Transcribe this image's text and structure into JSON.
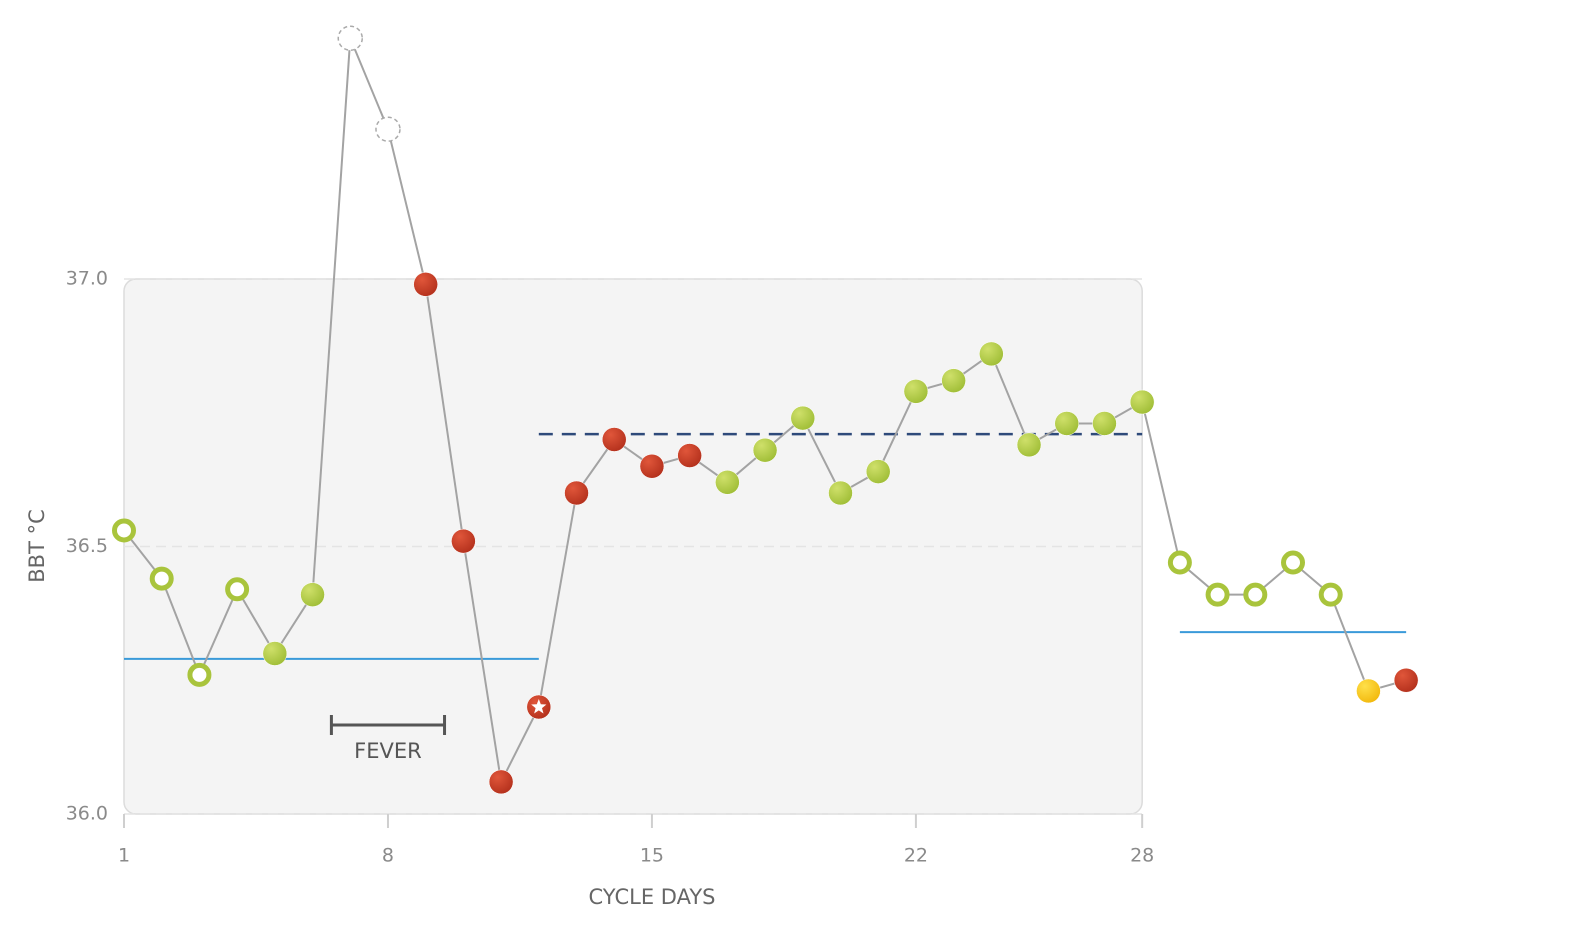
{
  "chart_data": {
    "type": "line",
    "x": [
      1,
      2,
      3,
      4,
      5,
      6,
      7,
      8,
      9,
      10,
      11,
      12,
      13,
      14,
      15,
      16,
      17,
      18,
      19,
      20,
      21,
      22,
      23,
      24,
      25,
      26,
      27,
      28,
      29,
      30,
      31,
      32,
      33,
      34,
      35
    ],
    "values": [
      36.53,
      36.44,
      36.26,
      36.42,
      36.3,
      36.41,
      37.45,
      37.28,
      36.99,
      36.51,
      36.06,
      36.2,
      36.6,
      36.7,
      36.65,
      36.67,
      36.62,
      36.68,
      36.74,
      36.6,
      36.64,
      36.79,
      36.81,
      36.86,
      36.69,
      36.73,
      36.73,
      36.77,
      36.47,
      36.41,
      36.41,
      36.47,
      36.41,
      36.23,
      36.25
    ],
    "markers": [
      "hollow",
      "hollow",
      "hollow",
      "hollow",
      "green",
      "green",
      "excluded",
      "excluded",
      "red",
      "red",
      "red",
      "ovulation",
      "red",
      "red",
      "red",
      "red",
      "green",
      "green",
      "green",
      "green",
      "green",
      "green",
      "green",
      "green",
      "green",
      "green",
      "green",
      "green",
      "hollow",
      "hollow",
      "hollow",
      "hollow",
      "hollow",
      "yellow",
      "red"
    ],
    "line_color": "#a3a3a3",
    "xlim": [
      1,
      36
    ],
    "xticks": [
      1,
      8,
      15,
      22,
      28
    ],
    "ylim": [
      36,
      37.5
    ],
    "yticks": [
      {
        "value": 36,
        "label": "36.0"
      },
      36.5,
      {
        "value": 37,
        "label": "37.0"
      }
    ],
    "grid": true,
    "xlabel": "CYCLE DAYS",
    "ylabel": "BBT °C",
    "shaded": {
      "x": [
        1,
        28
      ],
      "y": [
        36,
        37
      ],
      "color": "#f4f4f4"
    },
    "lines": [
      {
        "y": 36.29,
        "x": [
          1,
          12
        ],
        "color": "#3a9ad9",
        "dashed": false
      },
      {
        "y": 36.71,
        "x": [
          12,
          28
        ],
        "color": "#2e4a7a",
        "dashed": true
      },
      {
        "y": 36.34,
        "x": [
          29,
          35
        ],
        "color": "#3a9ad9",
        "dashed": false
      }
    ],
    "annotation": {
      "text": "FEVER",
      "x": [
        6.5,
        9.5
      ]
    }
  }
}
